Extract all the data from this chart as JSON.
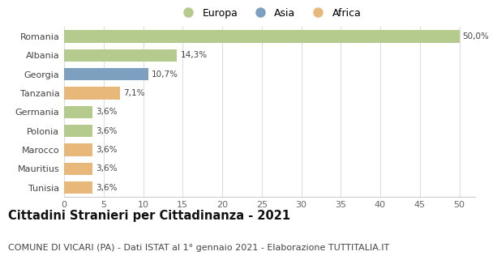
{
  "categories": [
    "Romania",
    "Albania",
    "Georgia",
    "Tanzania",
    "Germania",
    "Polonia",
    "Marocco",
    "Mauritius",
    "Tunisia"
  ],
  "values": [
    50.0,
    14.3,
    10.7,
    7.1,
    3.6,
    3.6,
    3.6,
    3.6,
    3.6
  ],
  "labels": [
    "50,0%",
    "14,3%",
    "10,7%",
    "7,1%",
    "3,6%",
    "3,6%",
    "3,6%",
    "3,6%",
    "3,6%"
  ],
  "continents": [
    "Europa",
    "Europa",
    "Asia",
    "Africa",
    "Europa",
    "Europa",
    "Africa",
    "Africa",
    "Africa"
  ],
  "colors": {
    "Europa": "#b5ca8d",
    "Asia": "#7d9fc0",
    "Africa": "#e8b87a"
  },
  "xlim": [
    0,
    52
  ],
  "xticks": [
    0,
    5,
    10,
    15,
    20,
    25,
    30,
    35,
    40,
    45,
    50
  ],
  "title": "Cittadini Stranieri per Cittadinanza - 2021",
  "subtitle": "COMUNE DI VICARI (PA) - Dati ISTAT al 1° gennaio 2021 - Elaborazione TUTTITALIA.IT",
  "title_fontsize": 10.5,
  "subtitle_fontsize": 8,
  "bg_color": "#ffffff",
  "grid_color": "#dddddd",
  "bar_height": 0.65
}
